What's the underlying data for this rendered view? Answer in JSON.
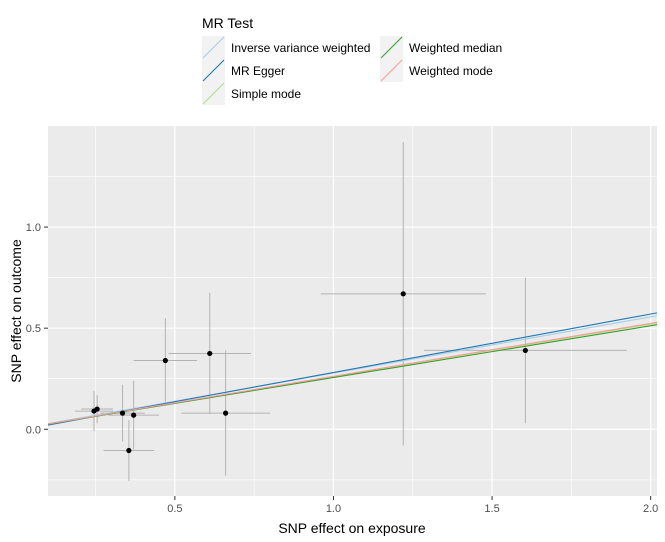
{
  "chart_data": {
    "type": "scatter",
    "xlabel": "SNP effect on exposure",
    "ylabel": "SNP effect on outcome",
    "xlim": [
      0.1,
      2.02
    ],
    "ylim": [
      -0.33,
      1.5
    ],
    "x_ticks": [
      0.5,
      1.0,
      1.5,
      2.0
    ],
    "x_tick_labels": [
      "0.5",
      "1.0",
      "1.5",
      "2.0"
    ],
    "y_ticks": [
      0.0,
      0.5,
      1.0
    ],
    "y_tick_labels": [
      "0.0",
      "0.5",
      "1.0"
    ],
    "grid": true,
    "legend": {
      "title": "MR Test",
      "position": "top",
      "entries": [
        {
          "label": "Inverse variance weighted",
          "color": "#a6cee3"
        },
        {
          "label": "MR Egger",
          "color": "#1f78b4"
        },
        {
          "label": "Simple mode",
          "color": "#b2df8a"
        },
        {
          "label": "Weighted median",
          "color": "#33a02c"
        },
        {
          "label": "Weighted mode",
          "color": "#fb9a99"
        }
      ]
    },
    "points": [
      {
        "x": 0.245,
        "y": 0.09,
        "xerr": 0.06,
        "yerr": 0.1
      },
      {
        "x": 0.255,
        "y": 0.1,
        "xerr": 0.05,
        "yerr": 0.07
      },
      {
        "x": 0.335,
        "y": 0.08,
        "xerr": 0.07,
        "yerr": 0.14
      },
      {
        "x": 0.355,
        "y": -0.105,
        "xerr": 0.08,
        "yerr": 0.15
      },
      {
        "x": 0.37,
        "y": 0.07,
        "xerr": 0.08,
        "yerr": 0.17
      },
      {
        "x": 0.47,
        "y": 0.34,
        "xerr": 0.1,
        "yerr": 0.21
      },
      {
        "x": 0.61,
        "y": 0.375,
        "xerr": 0.13,
        "yerr": 0.3
      },
      {
        "x": 0.66,
        "y": 0.08,
        "xerr": 0.14,
        "yerr": 0.31
      },
      {
        "x": 1.22,
        "y": 0.67,
        "xerr": 0.26,
        "yerr": 0.75
      },
      {
        "x": 1.605,
        "y": 0.39,
        "xerr": 0.32,
        "yerr": 0.36
      }
    ],
    "series": [
      {
        "name": "Inverse variance weighted",
        "color": "#a6cee3",
        "intercept": 0.0,
        "slope": 0.278
      },
      {
        "name": "MR Egger",
        "color": "#1f78b4",
        "intercept": -0.008,
        "slope": 0.289
      },
      {
        "name": "Simple mode",
        "color": "#b2df8a",
        "intercept": 0.0,
        "slope": 0.26
      },
      {
        "name": "Weighted median",
        "color": "#33a02c",
        "intercept": 0.0,
        "slope": 0.256
      },
      {
        "name": "Weighted mode",
        "color": "#fb9a99",
        "intercept": 0.0,
        "slope": 0.262
      }
    ]
  }
}
